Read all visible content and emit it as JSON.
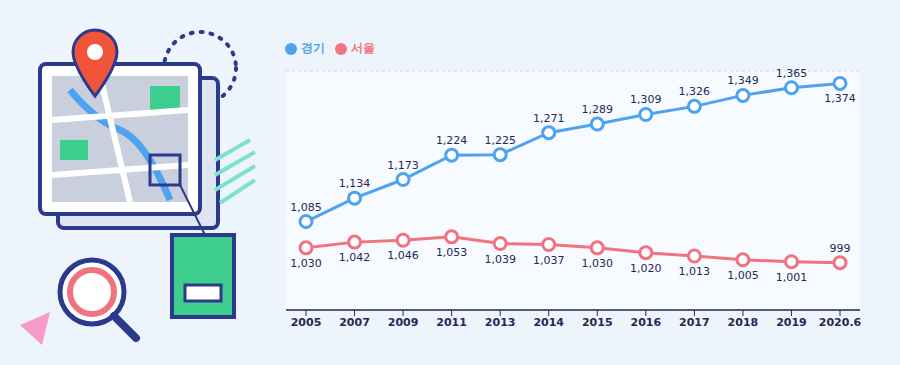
{
  "chart_data": {
    "type": "line",
    "categories": [
      "2005",
      "2007",
      "2009",
      "2011",
      "2013",
      "2014",
      "2015",
      "2016",
      "2017",
      "2018",
      "2019",
      "2020.6"
    ],
    "series": [
      {
        "name": "경기",
        "color": "#4da3f0",
        "marker": "circle",
        "values": [
          1085,
          1134,
          1173,
          1224,
          1225,
          1271,
          1289,
          1309,
          1326,
          1349,
          1365,
          1374
        ],
        "value_labels": [
          "1,085",
          "1,134",
          "1,173",
          "1,224",
          "1,225",
          "1,271",
          "1,289",
          "1,309",
          "1,326",
          "1,349",
          "1,365",
          "1,374"
        ]
      },
      {
        "name": "서울",
        "color": "#f07480",
        "marker": "circle",
        "values": [
          1030,
          1042,
          1046,
          1053,
          1039,
          1037,
          1030,
          1020,
          1013,
          1005,
          1001,
          999
        ],
        "value_labels": [
          "1,030",
          "1,042",
          "1,046",
          "1,053",
          "1,039",
          "1,037",
          "1,030",
          "1,020",
          "1,013",
          "1,005",
          "1,001",
          "999"
        ]
      }
    ],
    "ylim": [
      900,
      1400
    ],
    "yticks": [
      900,
      1000,
      1100,
      1200,
      1300,
      1400
    ],
    "grid": true,
    "legend": "top-left",
    "data_labels": true,
    "tick_labels": "x"
  }
}
